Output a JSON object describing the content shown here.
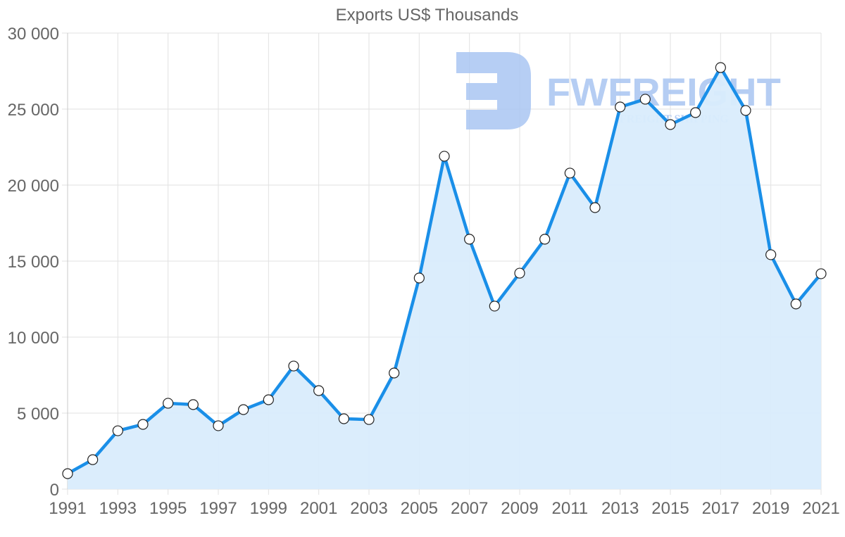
{
  "chart_data": {
    "type": "area",
    "title": "Exports US$ Thousands",
    "xlabel": "",
    "ylabel": "",
    "ylim": [
      0,
      30000
    ],
    "grid": true,
    "legend": null,
    "x": [
      1991,
      1992,
      1993,
      1994,
      1995,
      1996,
      1997,
      1998,
      1999,
      2000,
      2001,
      2002,
      2003,
      2004,
      2005,
      2006,
      2007,
      2008,
      2009,
      2010,
      2011,
      2012,
      2013,
      2014,
      2015,
      2016,
      2017,
      2018,
      2019,
      2020,
      2021
    ],
    "series": [
      {
        "name": "Exports US$ Thousands",
        "values": [
          1020,
          1940,
          3840,
          4260,
          5650,
          5560,
          4170,
          5230,
          5880,
          8100,
          6480,
          4630,
          4580,
          7640,
          13890,
          21900,
          16440,
          12040,
          14210,
          16440,
          20790,
          18520,
          25140,
          25650,
          23980,
          24770,
          27730,
          24910,
          15420,
          12180,
          14170
        ]
      }
    ],
    "y_ticks": [
      "0",
      "5 000",
      "10 000",
      "15 000",
      "20 000",
      "25 000",
      "30 000"
    ],
    "x_ticks": [
      "1991",
      "1993",
      "1995",
      "1997",
      "1999",
      "2001",
      "2003",
      "2005",
      "2007",
      "2009",
      "2011",
      "2013",
      "2015",
      "2017",
      "2019",
      "2021"
    ]
  },
  "watermark": {
    "brand": "FWFREIGHT",
    "tagline": "FREIGHT SHIPPING"
  },
  "colors": {
    "line": "#1a8fe8",
    "fill": "#d9ecfc",
    "grid": "#e2e2e2",
    "text": "#666666",
    "watermark": "#a9c5f2"
  }
}
